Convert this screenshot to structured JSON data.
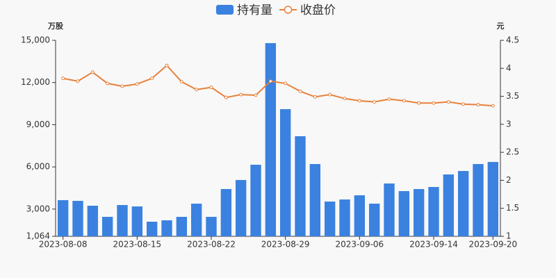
{
  "chart_data": {
    "type": "bar",
    "y_label": "万股",
    "y2_label": "元",
    "categories": [
      "2023-08-08",
      null,
      null,
      null,
      null,
      "2023-08-15",
      null,
      null,
      null,
      null,
      "2023-08-22",
      null,
      null,
      null,
      null,
      "2023-08-29",
      null,
      null,
      null,
      null,
      "2023-09-06",
      null,
      null,
      null,
      null,
      "2023-09-14",
      null,
      null,
      null,
      "2023-09-20"
    ],
    "series": [
      {
        "name": "持有量",
        "type": "bar",
        "color": "#3b82e0",
        "values": [
          3633,
          3584,
          3238,
          2447,
          3287,
          3188,
          2102,
          2200,
          2447,
          3386,
          2447,
          4424,
          5066,
          6153,
          14800,
          10106,
          8179,
          6202,
          3534,
          3682,
          3979,
          3386,
          4819,
          4276,
          4424,
          4572,
          5461,
          5708,
          6202,
          6350
        ]
      },
      {
        "name": "收盘价",
        "type": "line",
        "axis": "y2",
        "color": "#e8803a",
        "values": [
          3.82,
          3.77,
          3.93,
          3.73,
          3.68,
          3.72,
          3.82,
          4.05,
          3.76,
          3.62,
          3.66,
          3.48,
          3.53,
          3.52,
          3.77,
          3.73,
          3.59,
          3.49,
          3.53,
          3.46,
          3.42,
          3.4,
          3.45,
          3.42,
          3.38,
          3.38,
          3.4,
          3.36,
          3.35,
          3.33
        ]
      }
    ],
    "ylim": [
      1064,
      15000
    ],
    "yticks": [
      {
        "value": 1064,
        "label": "1,064"
      },
      {
        "value": 3000,
        "label": "3,000"
      },
      {
        "value": 6000,
        "label": "6,000"
      },
      {
        "value": 9000,
        "label": "9,000"
      },
      {
        "value": 12000,
        "label": "12,000"
      },
      {
        "value": 15000,
        "label": "15,000"
      }
    ],
    "y2lim": [
      1,
      4.5
    ],
    "y2ticks": [
      1,
      1.5,
      2,
      2.5,
      3,
      3.5,
      4,
      4.5
    ],
    "legend": "top"
  }
}
